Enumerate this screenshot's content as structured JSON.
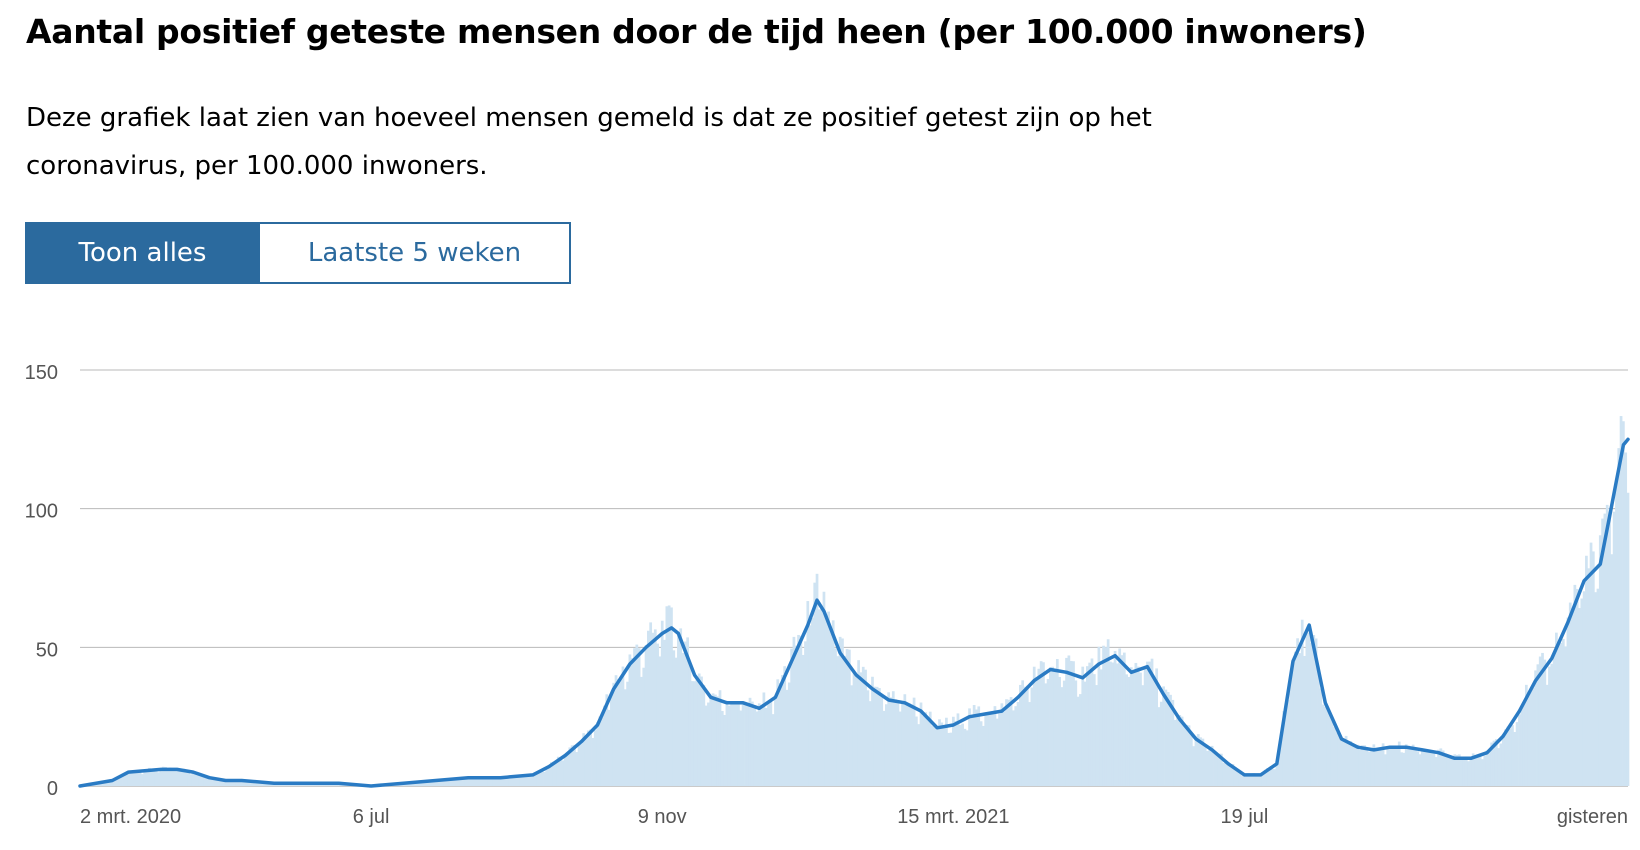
{
  "header": {
    "title": "Aantal positief geteste mensen door de tijd heen (per 100.000 inwoners)",
    "description": "Deze grafiek laat zien van hoeveel mensen gemeld is dat ze positief getest zijn op het coronavirus, per 100.000 inwoners."
  },
  "tabs": [
    {
      "label": "Toon alles",
      "active": true
    },
    {
      "label": "Laatste 5 weken",
      "active": false
    }
  ],
  "colors": {
    "accent": "#2b6a9e",
    "line": "#2a7bc4",
    "bars": "#cfe3f2",
    "grid": "#b9b9b9",
    "axis_text": "#555555"
  },
  "chart_data": {
    "type": "line",
    "title": "",
    "xlabel": "",
    "ylabel": "",
    "ylim": [
      0,
      150
    ],
    "yticks": [
      "0",
      "50",
      "100",
      "150"
    ],
    "xlim": [
      0,
      670
    ],
    "xticks": [
      {
        "x": 0,
        "label": "2 mrt. 2020"
      },
      {
        "x": 126,
        "label": "6 jul"
      },
      {
        "x": 252,
        "label": "9 nov"
      },
      {
        "x": 378,
        "label": "15 mrt. 2021"
      },
      {
        "x": 504,
        "label": "19 jul"
      },
      {
        "x": 670,
        "label": "gisteren"
      }
    ],
    "x_unit": "dagen sinds 2 mrt. 2020",
    "series": [
      {
        "type": "line",
        "x": [
          0,
          14,
          21,
          35,
          42,
          49,
          56,
          63,
          70,
          84,
          98,
          112,
          126,
          140,
          154,
          168,
          182,
          196,
          203,
          210,
          217,
          224,
          231,
          238,
          245,
          252,
          256,
          259,
          266,
          273,
          280,
          287,
          294,
          301,
          308,
          315,
          319,
          322,
          329,
          336,
          343,
          350,
          357,
          364,
          371,
          378,
          385,
          392,
          399,
          406,
          413,
          420,
          427,
          434,
          441,
          448,
          455,
          462,
          469,
          476,
          483,
          490,
          497,
          504,
          511,
          518,
          525,
          532,
          539,
          546,
          553,
          560,
          567,
          574,
          581,
          588,
          595,
          602,
          609,
          616,
          623,
          630,
          637,
          644,
          651,
          658,
          662,
          665,
          668,
          670
        ],
        "y": [
          0,
          2,
          5,
          6,
          6,
          5,
          3,
          2,
          2,
          1,
          1,
          1,
          0,
          1,
          2,
          3,
          3,
          4,
          7,
          11,
          16,
          22,
          35,
          44,
          50,
          55,
          57,
          55,
          40,
          32,
          30,
          30,
          28,
          32,
          45,
          58,
          67,
          63,
          48,
          40,
          35,
          31,
          30,
          27,
          21,
          22,
          25,
          26,
          27,
          32,
          38,
          42,
          41,
          39,
          44,
          47,
          41,
          43,
          33,
          24,
          17,
          13,
          8,
          4,
          4,
          8,
          45,
          58,
          30,
          17,
          14,
          13,
          14,
          14,
          13,
          12,
          10,
          10,
          12,
          18,
          27,
          38,
          46,
          59,
          74,
          80,
          97,
          110,
          123,
          125
        ]
      }
    ]
  }
}
